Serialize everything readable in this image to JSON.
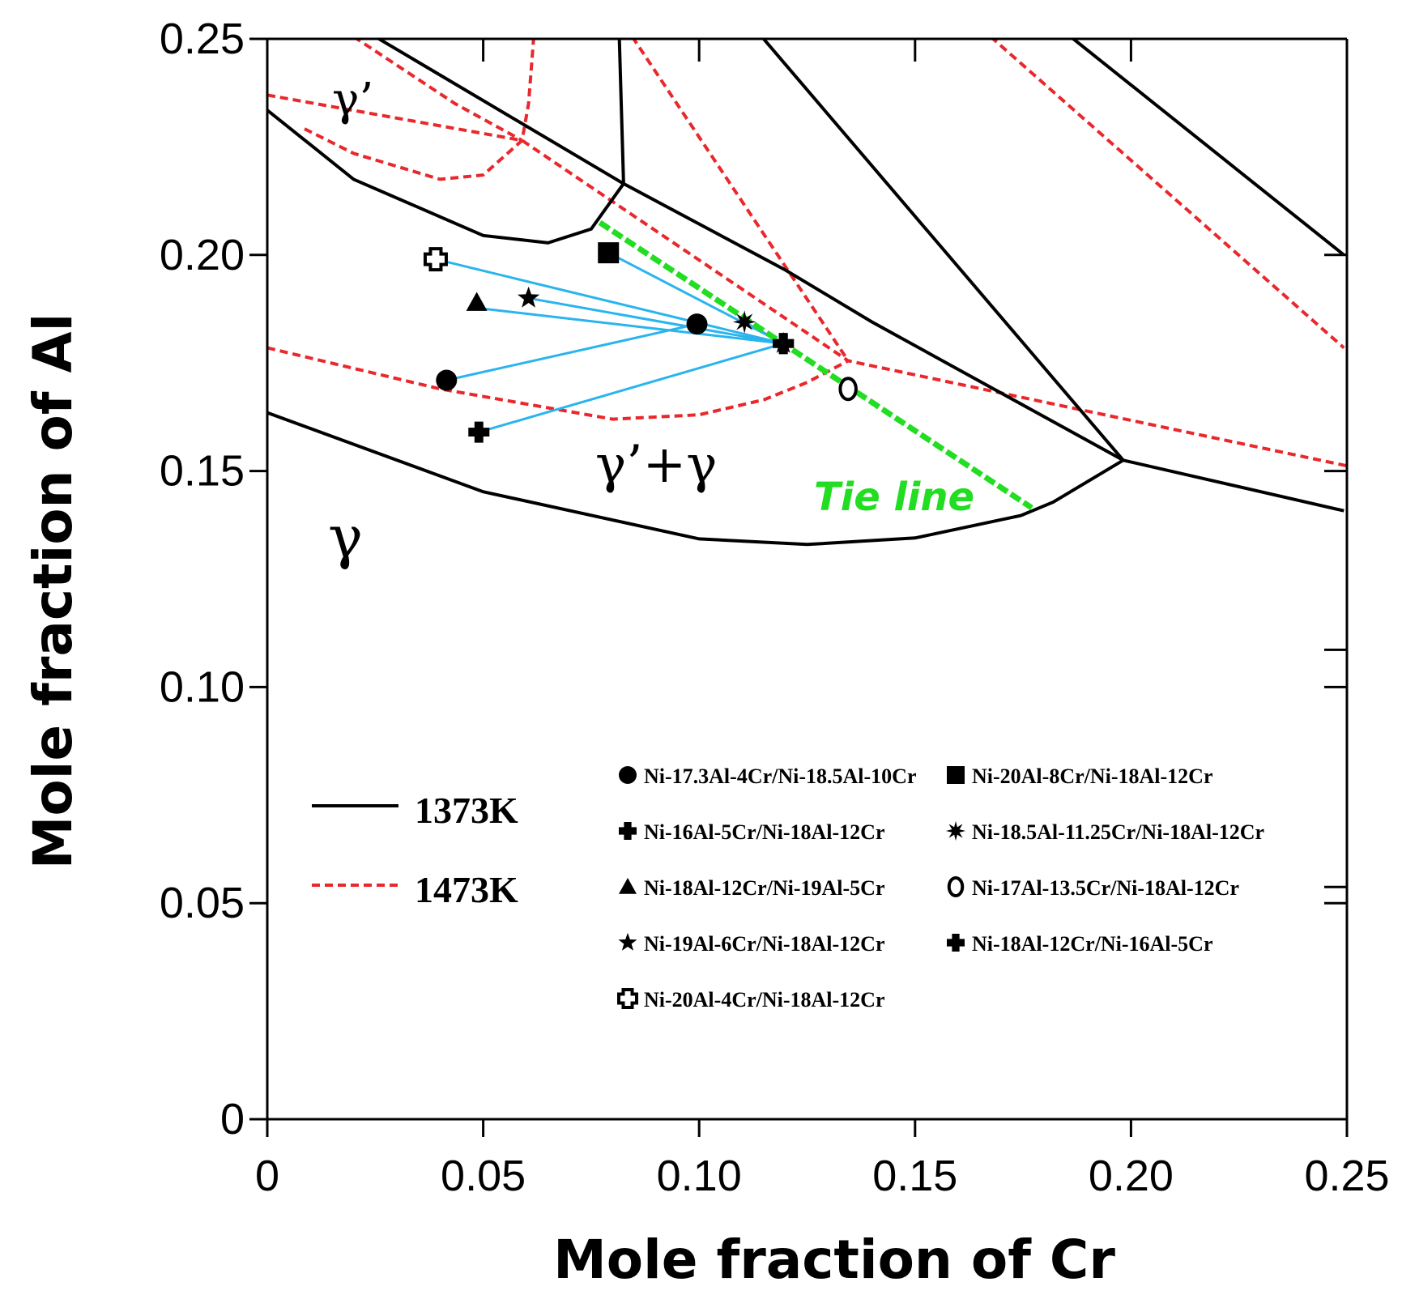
{
  "chart_data": {
    "type": "scatter",
    "title": "",
    "xlabel": "Mole fraction of Cr",
    "ylabel": "Mole fraction of Al",
    "xlim": [
      0,
      0.25
    ],
    "ylim": [
      0,
      0.25
    ],
    "xticks": [
      "0",
      "0.05",
      "0.10",
      "0.15",
      "0.20",
      "0.25"
    ],
    "yticks": [
      "0",
      "0.05",
      "0.10",
      "0.15",
      "0.20",
      "0.25"
    ],
    "grid": false,
    "phase_labels": [
      "γ’",
      "γ’+γ",
      "γ"
    ],
    "tie_line_label": "Tie line",
    "temperature_legend": [
      "1373K",
      "1473K"
    ],
    "colors": {
      "T1373": "#000000",
      "T1473": "#e8282c",
      "tie_line": "#22dd22",
      "diffusion_path": "#2ab4ee"
    },
    "boundaries": {
      "T1373": [
        [
          [
            0,
            0.2335
          ],
          [
            0.02,
            0.2175
          ],
          [
            0.05,
            0.2045
          ],
          [
            0.065,
            0.2028
          ],
          [
            0.075,
            0.206
          ],
          [
            0.0825,
            0.2165
          ]
        ],
        [
          [
            0.025,
            0.2505
          ],
          [
            0.0825,
            0.2165
          ],
          [
            0.12,
            0.1965
          ],
          [
            0.14,
            0.1845
          ],
          [
            0.1982,
            0.1525
          ]
        ],
        [
          [
            0.0815,
            0.2505
          ],
          [
            0.0825,
            0.2165
          ]
        ],
        [
          [
            0.1145,
            0.2505
          ],
          [
            0.1982,
            0.1525
          ]
        ],
        [
          [
            0.186,
            0.2505
          ],
          [
            0.2493,
            0.2
          ]
        ],
        [
          [
            0,
            0.1635
          ],
          [
            0.05,
            0.1452
          ],
          [
            0.1,
            0.1343
          ],
          [
            0.125,
            0.133
          ],
          [
            0.15,
            0.1345
          ],
          [
            0.1745,
            0.1397
          ],
          [
            0.182,
            0.1428
          ],
          [
            0.1982,
            0.1525
          ]
        ],
        [
          [
            0.1982,
            0.1525
          ],
          [
            0.2493,
            0.1408
          ]
        ]
      ],
      "T1473": [
        [
          [
            0,
            0.237
          ],
          [
            0.059,
            0.2265
          ],
          [
            0.1345,
            0.1755
          ],
          [
            0.25,
            0.1512
          ]
        ],
        [
          [
            0.02,
            0.2505
          ],
          [
            0.0435,
            0.235
          ],
          [
            0.059,
            0.2265
          ]
        ],
        [
          [
            0.0617,
            0.2505
          ],
          [
            0.0605,
            0.235
          ],
          [
            0.059,
            0.2265
          ],
          [
            0.05,
            0.2185
          ],
          [
            0.04,
            0.2175
          ],
          [
            0.02,
            0.2235
          ],
          [
            0.008,
            0.2295
          ]
        ],
        [
          [
            0.0845,
            0.2505
          ],
          [
            0.1345,
            0.1755
          ]
        ],
        [
          [
            0,
            0.1785
          ],
          [
            0.04,
            0.169
          ],
          [
            0.08,
            0.162
          ],
          [
            0.1,
            0.163
          ],
          [
            0.115,
            0.1665
          ],
          [
            0.125,
            0.1705
          ],
          [
            0.1345,
            0.1755
          ]
        ],
        [
          [
            0.1675,
            0.2505
          ],
          [
            0.2493,
            0.1785
          ]
        ]
      ]
    },
    "tie_line": [
      [
        0.077,
        0.2075
      ],
      [
        0.177,
        0.1415
      ]
    ],
    "series": [
      {
        "name": "Ni-17.3Al-4Cr/Ni-18.5Al-10Cr",
        "marker": "circle",
        "legend_column": 0,
        "points": [
          [
            0.0415,
            0.171
          ],
          [
            0.0995,
            0.184
          ]
        ]
      },
      {
        "name": "Ni-16Al-5Cr/Ni-18Al-12Cr",
        "marker": "cross",
        "legend_column": 0,
        "points": [
          [
            0.049,
            0.159
          ],
          [
            0.1195,
            0.1795
          ]
        ]
      },
      {
        "name": "Ni-18Al-12Cr/Ni-19Al-5Cr",
        "marker": "triangle",
        "legend_column": 0,
        "points": [
          [
            0.0485,
            0.189
          ]
        ],
        "path": [
          [
            0.0505,
            0.1875
          ],
          [
            0.1195,
            0.1795
          ]
        ]
      },
      {
        "name": "Ni-19Al-6Cr/Ni-18Al-12Cr",
        "marker": "star",
        "legend_column": 0,
        "points": [
          [
            0.0605,
            0.19
          ],
          [
            0.1195,
            0.1795
          ]
        ]
      },
      {
        "name": "Ni-20Al-4Cr/Ni-18Al-12Cr",
        "marker": "open-cross",
        "legend_column": 0,
        "points": [
          [
            0.039,
            0.199
          ]
        ],
        "path": [
          [
            0.039,
            0.199
          ],
          [
            0.1195,
            0.1795
          ]
        ]
      },
      {
        "name": "Ni-20Al-8Cr/Ni-18Al-12Cr",
        "marker": "square",
        "legend_column": 1,
        "points": [
          [
            0.079,
            0.2005
          ]
        ],
        "path": [
          [
            0.079,
            0.2005
          ],
          [
            0.1195,
            0.1795
          ]
        ]
      },
      {
        "name": "Ni-18.5Al-11.25Cr/Ni-18Al-12Cr",
        "marker": "asterisk",
        "legend_column": 1,
        "points": [
          [
            0.1105,
            0.1845
          ]
        ],
        "path": [
          [
            0.1105,
            0.1845
          ],
          [
            0.1195,
            0.1795
          ]
        ]
      },
      {
        "name": "Ni-17Al-13.5Cr/Ni-18Al-12Cr",
        "marker": "open-circle",
        "legend_column": 1,
        "points": [
          [
            0.1345,
            0.169
          ]
        ]
      },
      {
        "name": "Ni-18Al-12Cr/Ni-16Al-5Cr",
        "marker": "cross",
        "legend_column": 1,
        "points": [
          [
            0.1195,
            0.1795
          ]
        ]
      }
    ]
  }
}
